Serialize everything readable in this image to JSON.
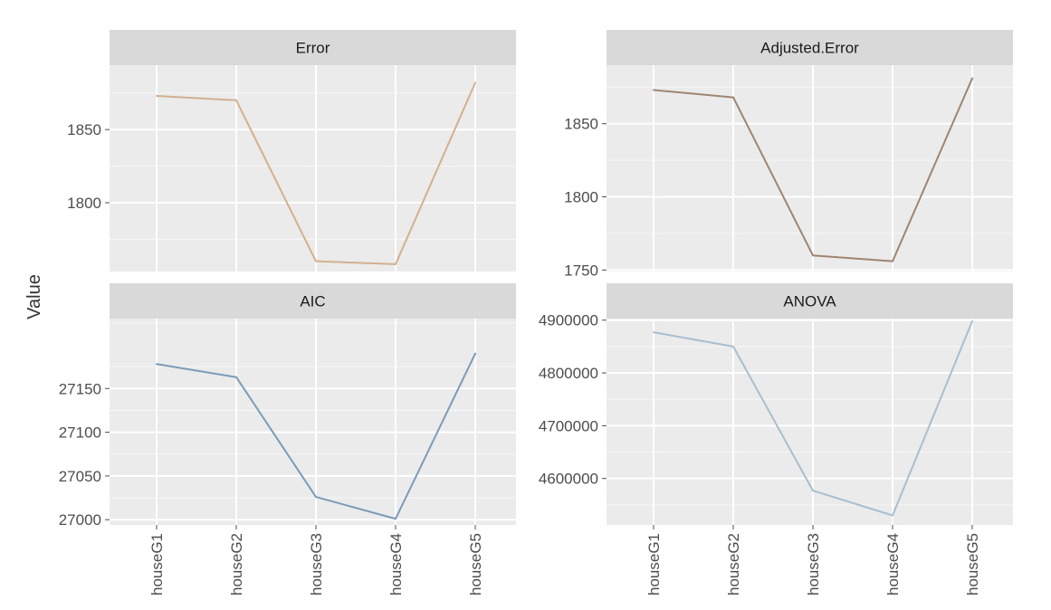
{
  "chart_data": {
    "type": "line",
    "ylabel": "Value",
    "categories": [
      "houseG1",
      "houseG2",
      "houseG3",
      "houseG4",
      "houseG5"
    ],
    "panels": [
      {
        "strip": "Error",
        "color": "#d2b090",
        "ylim": [
          1753,
          1894
        ],
        "yticks": [
          1800,
          1850
        ],
        "values": [
          1873,
          1870,
          1760,
          1758,
          1882
        ]
      },
      {
        "strip": "Adjusted.Error",
        "color": "#a08570",
        "ylim": [
          1749,
          1890
        ],
        "yticks": [
          1750,
          1800,
          1850
        ],
        "values": [
          1873,
          1868,
          1760,
          1756,
          1881
        ]
      },
      {
        "strip": "AIC",
        "color": "#7b9cb8",
        "ylim": [
          26994,
          27230
        ],
        "yticks": [
          27000,
          27050,
          27100,
          27150
        ],
        "values": [
          27178,
          27163,
          27026,
          27001,
          27190
        ]
      },
      {
        "strip": "ANOVA",
        "color": "#a9bfcf",
        "ylim": [
          4512000,
          4903000
        ],
        "yticks": [
          4600000,
          4700000,
          4800000,
          4900000
        ],
        "values": [
          4877000,
          4850000,
          4577000,
          4530000,
          4898000
        ]
      }
    ],
    "grid": true,
    "legend": "none"
  }
}
